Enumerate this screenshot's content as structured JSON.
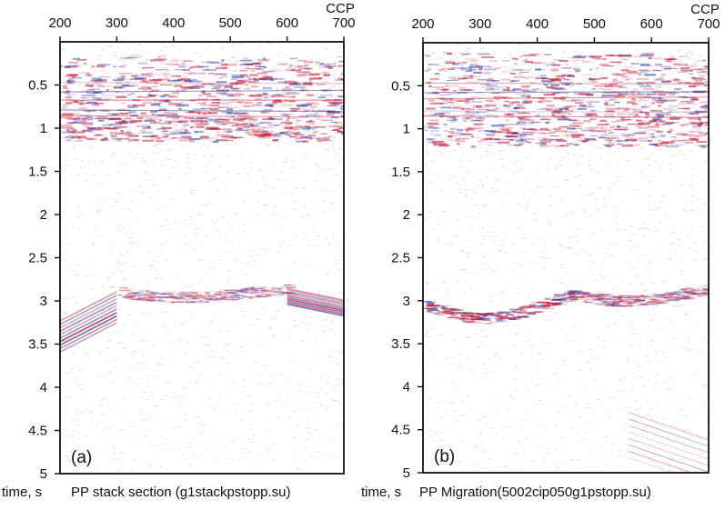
{
  "chart_data": [
    {
      "type": "heatmap",
      "panel_label": "(a)",
      "xlabel": "CCP",
      "ylabel": "time, s",
      "caption": "PP stack section (g1stackpstopp.su)",
      "xlim": [
        200,
        700
      ],
      "ylim": [
        0,
        5
      ],
      "y_inverted": true,
      "x_ticks": [
        "200",
        "300",
        "400",
        "500",
        "600",
        "700"
      ],
      "y_ticks": [
        "0.5",
        "1",
        "1.5",
        "2",
        "2.5",
        "3",
        "3.5",
        "4",
        "4.5",
        "5"
      ],
      "colormap": {
        "positive": "#c8102e",
        "negative": "#2d3fa8",
        "zero": "#ffffff"
      },
      "features": [
        {
          "kind": "band",
          "x": [
            200,
            700
          ],
          "t": [
            0.15,
            1.15
          ],
          "strength": 0.6
        },
        {
          "kind": "dipping",
          "x": [
            200,
            300
          ],
          "t": [
            3.0,
            3.4
          ],
          "strength": 0.9
        },
        {
          "kind": "event",
          "x": [
            300,
            600
          ],
          "t": [
            2.85,
            2.95
          ],
          "strength": 0.35
        },
        {
          "kind": "dipping",
          "x": [
            600,
            700
          ],
          "t": [
            2.9,
            3.1
          ],
          "strength": 0.85
        }
      ]
    },
    {
      "type": "heatmap",
      "panel_label": "(b)",
      "xlabel": "CCP",
      "ylabel": "time, s",
      "caption": "PP Migration(5002cip050g1pstopp.su)",
      "xlim": [
        200,
        700
      ],
      "ylim": [
        0,
        5
      ],
      "y_inverted": true,
      "x_ticks": [
        "200",
        "300",
        "400",
        "500",
        "600",
        "700"
      ],
      "y_ticks": [
        "0.5",
        "1",
        "1.5",
        "2",
        "2.5",
        "3",
        "3.5",
        "4",
        "4.5",
        "5"
      ],
      "colormap": {
        "positive": "#c8102e",
        "negative": "#2d3fa8",
        "zero": "#ffffff"
      },
      "features": [
        {
          "kind": "band",
          "x": [
            200,
            700
          ],
          "t": [
            0.1,
            1.2
          ],
          "strength": 0.6
        },
        {
          "kind": "event",
          "x": [
            200,
            460
          ],
          "t": [
            2.9,
            3.2
          ],
          "strength": 0.6
        },
        {
          "kind": "event",
          "x": [
            460,
            700
          ],
          "t": [
            2.85,
            3.0
          ],
          "strength": 0.4
        },
        {
          "kind": "diffraction",
          "x": [
            560,
            700
          ],
          "t": [
            4.3,
            4.9
          ],
          "strength": 0.3
        }
      ]
    }
  ]
}
